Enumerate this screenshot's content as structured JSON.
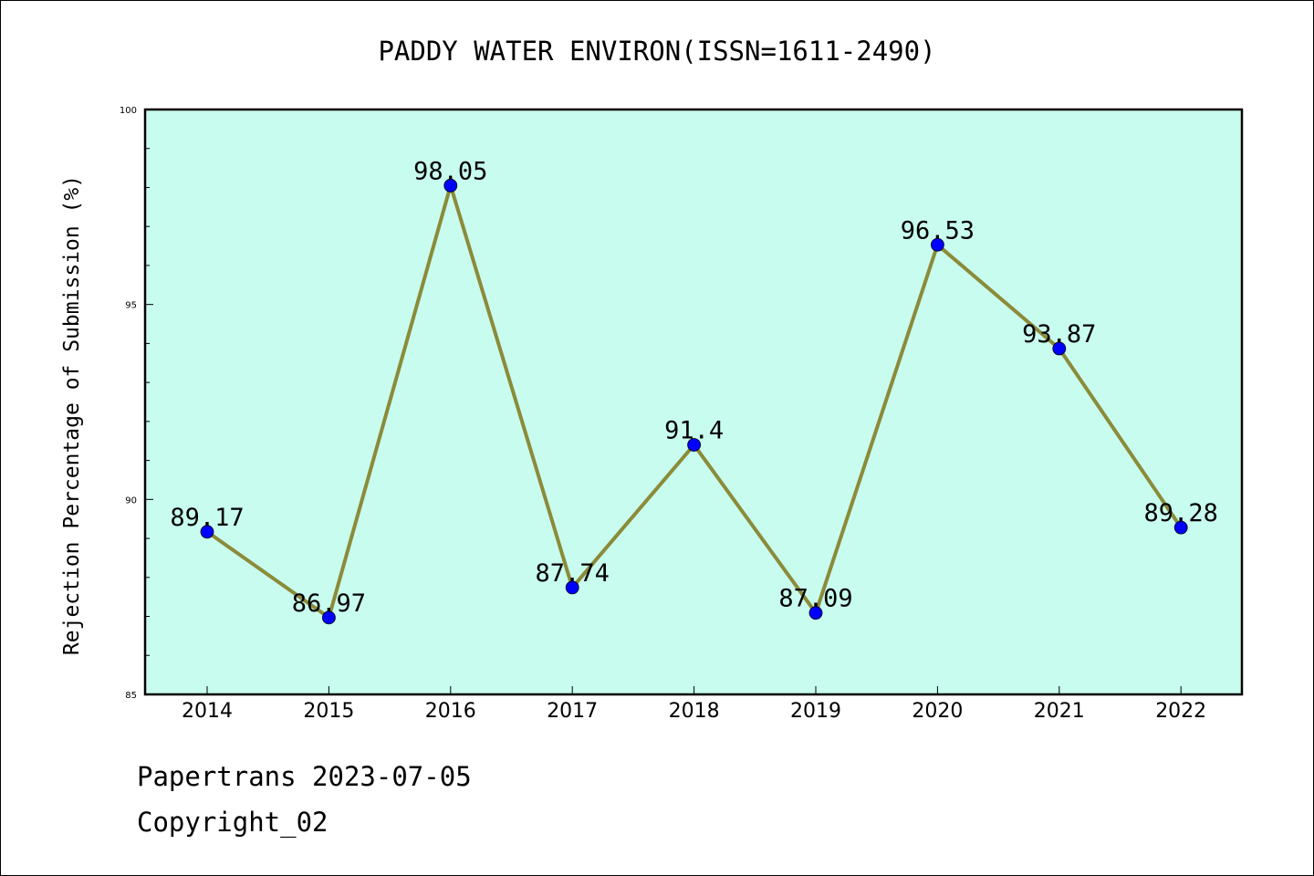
{
  "chart_data": {
    "type": "line",
    "title": "PADDY WATER ENVIRON(ISSN=1611-2490)",
    "xlabel": "",
    "ylabel": "Rejection Percentage of Submission (%)",
    "categories": [
      "2014",
      "2015",
      "2016",
      "2017",
      "2018",
      "2019",
      "2020",
      "2021",
      "2022"
    ],
    "series": [
      {
        "values": [
          89.17,
          86.97,
          98.05,
          87.74,
          91.4,
          87.09,
          96.53,
          93.87,
          89.28
        ],
        "data_labels": [
          "89.17",
          "86.97",
          "98.05",
          "87.74",
          "91.4",
          "87.09",
          "96.53",
          "93.87",
          "89.28"
        ]
      }
    ],
    "ylim": [
      85,
      100
    ],
    "yticks": [
      85,
      90,
      95,
      100
    ],
    "ytick_labels": [
      "85",
      "90",
      "95",
      "100"
    ],
    "y_minor_step": 1,
    "grid": false,
    "colors": {
      "plot_background": "#c8fcee",
      "line": "#8b8b3a",
      "marker": "#0000ff",
      "axis": "#000000"
    }
  },
  "footer": {
    "line1": "Papertrans 2023-07-05",
    "line2": "Copyright_02"
  }
}
